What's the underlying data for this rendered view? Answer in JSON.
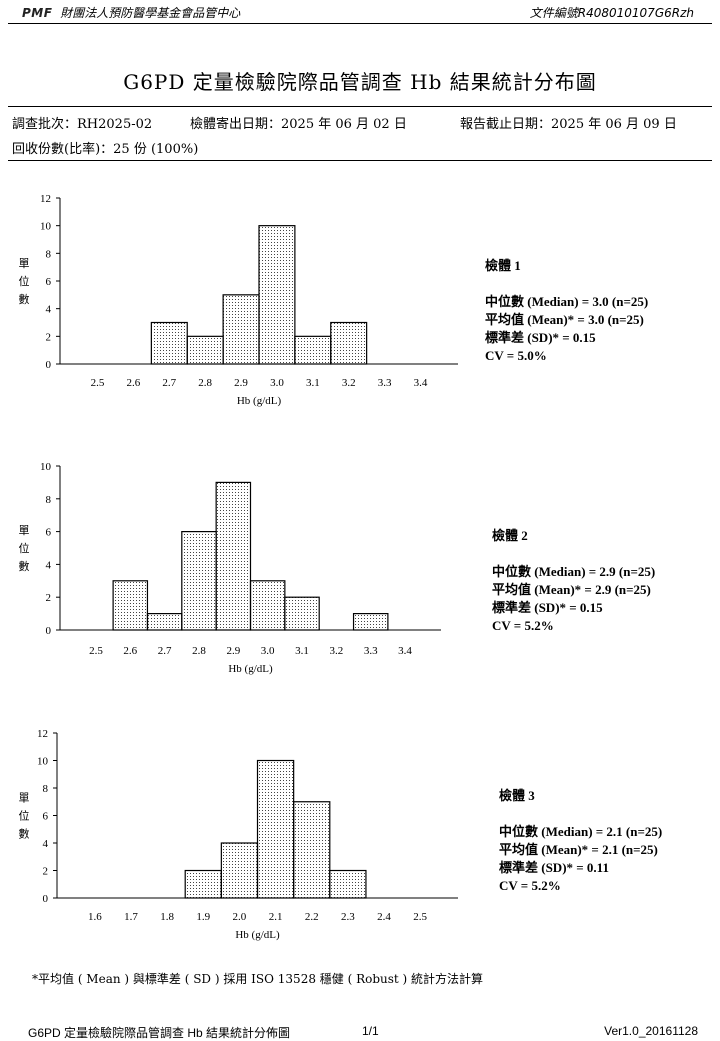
{
  "header": {
    "org_logo": "PMF",
    "org_name": "財團法人預防醫學基金會品管中心",
    "doc_no": "文件編號R408010107G6Rzh"
  },
  "title": "G6PD 定量檢驗院際品管調查 Hb 結果統計分布圖",
  "info": {
    "batch": "調查批次：RH2025-02",
    "sent_date": "檢體寄出日期：2025 年 06 月 02 日",
    "deadline": "報告截止日期：2025 年 06 月 09 日",
    "returns": "回收份數(比率)：25 份 (100%)"
  },
  "chart_data": [
    {
      "type": "bar",
      "ylabel": "單位數",
      "xlabel": "Hb (g/dL)",
      "tick_labels": [
        "2.5",
        "2.6",
        "2.7",
        "2.8",
        "2.9",
        "3.0",
        "3.1",
        "3.2",
        "3.3",
        "3.4"
      ],
      "xlim": [
        2.5,
        3.4
      ],
      "ylim": [
        0,
        12
      ],
      "yticks": [
        0,
        2,
        4,
        6,
        8,
        10,
        12
      ],
      "bins": [
        2.7,
        2.8,
        2.9,
        3.0,
        3.1,
        3.2
      ],
      "values": [
        3,
        2,
        5,
        10,
        2,
        3
      ],
      "stats": {
        "title": "檢體 1",
        "median": "中位數 (Median) = 3.0 (n=25)",
        "mean": "平均值 (Mean)* = 3.0 (n=25)",
        "sd": "標準差 (SD)* = 0.15",
        "cv": "CV = 5.0%"
      }
    },
    {
      "type": "bar",
      "ylabel": "單位數",
      "xlabel": "Hb (g/dL)",
      "tick_labels": [
        "2.5",
        "2.6",
        "2.7",
        "2.8",
        "2.9",
        "3.0",
        "3.1",
        "3.2",
        "3.3",
        "3.4"
      ],
      "xlim": [
        2.5,
        3.4
      ],
      "ylim": [
        0,
        10
      ],
      "yticks": [
        0,
        2,
        4,
        6,
        8,
        10
      ],
      "bins": [
        2.6,
        2.7,
        2.8,
        2.9,
        3.0,
        3.1,
        3.3
      ],
      "values": [
        3,
        1,
        6,
        9,
        3,
        2,
        1
      ],
      "stats": {
        "title": "檢體 2",
        "median": "中位數 (Median) = 2.9 (n=25)",
        "mean": "平均值 (Mean)* = 2.9 (n=25)",
        "sd": "標準差 (SD)* = 0.15",
        "cv": "CV = 5.2%"
      }
    },
    {
      "type": "bar",
      "ylabel": "單位數",
      "xlabel": "Hb (g/dL)",
      "tick_labels": [
        "1.6",
        "1.7",
        "1.8",
        "1.9",
        "2.0",
        "2.1",
        "2.2",
        "2.3",
        "2.4",
        "2.5"
      ],
      "xlim": [
        1.6,
        2.5
      ],
      "ylim": [
        0,
        12
      ],
      "yticks": [
        0,
        2,
        4,
        6,
        8,
        10,
        12
      ],
      "bins": [
        1.9,
        2.0,
        2.1,
        2.2,
        2.3
      ],
      "values": [
        2,
        4,
        10,
        7,
        2
      ],
      "stats": {
        "title": "檢體 3",
        "median": "中位數 (Median) = 2.1 (n=25)",
        "mean": "平均值 (Mean)* = 2.1 (n=25)",
        "sd": "標準差 (SD)* = 0.11",
        "cv": "CV = 5.2%"
      }
    }
  ],
  "note": "*平均值 ( Mean ) 與標準差 ( SD ) 採用 ISO 13528 穩健 ( Robust ) 統計方法計算",
  "footer": {
    "left": "G6PD 定量檢驗院際品管調查 Hb 結果統計分佈圖",
    "center": "1/1",
    "right": "Ver1.0_20161128"
  }
}
